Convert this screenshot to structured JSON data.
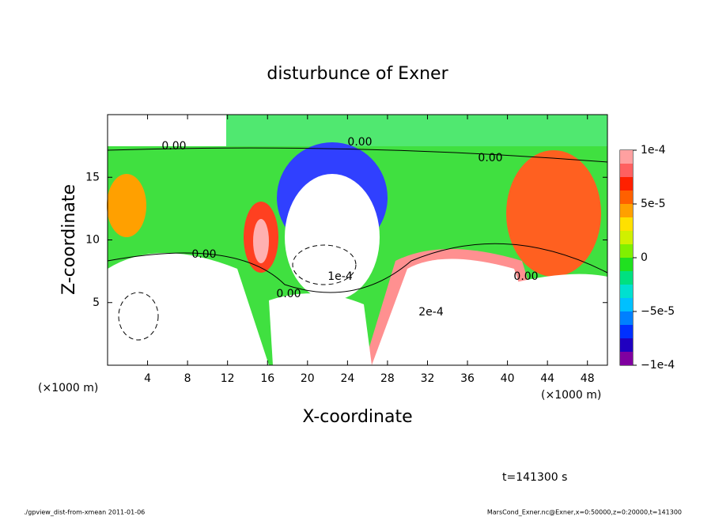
{
  "chart_data": {
    "type": "contour",
    "title": "disturbunce of Exner",
    "xlabel": "X-coordinate",
    "ylabel": "Z-coordinate",
    "x_unit_label": "(×1000 m)",
    "y_unit_label": "(×1000 m)",
    "xlim": [
      0,
      50
    ],
    "xticks": [
      4,
      8,
      12,
      16,
      20,
      24,
      28,
      32,
      36,
      40,
      44,
      48
    ],
    "ylim": [
      0,
      20
    ],
    "yticks": [
      5,
      10,
      15
    ],
    "colorbar_lim": [
      -0.0001,
      0.0001
    ],
    "colorbar_ticks": [
      {
        "value": 0.0001,
        "label": "1e-4"
      },
      {
        "value": 5e-05,
        "label": "5e-5"
      },
      0,
      {
        "value": -5e-05,
        "label": "−5e-5"
      },
      {
        "value": -0.0001,
        "label": "−1e-4"
      }
    ],
    "colormap": [
      "#8000a0",
      "#2000c0",
      "#0030ff",
      "#0080ff",
      "#00c0ff",
      "#00e0d0",
      "#00e080",
      "#20e020",
      "#80f000",
      "#d0f000",
      "#ffe000",
      "#ffa000",
      "#ff6000",
      "#ff2000",
      "#ff6060",
      "#ffa0a0"
    ],
    "contour_labels": [
      "0.00",
      "0.00",
      "0.00",
      "0.00",
      "0.00",
      "0.00",
      "1e-4",
      "2e-4"
    ],
    "time_label": "t=141300 s",
    "footer_left": "./gpview_dist-from-xmean  2011-01-06",
    "footer_right": "MarsCond_Exner.nc@Exner,x=0:50000,z=0:20000,t=141300"
  }
}
